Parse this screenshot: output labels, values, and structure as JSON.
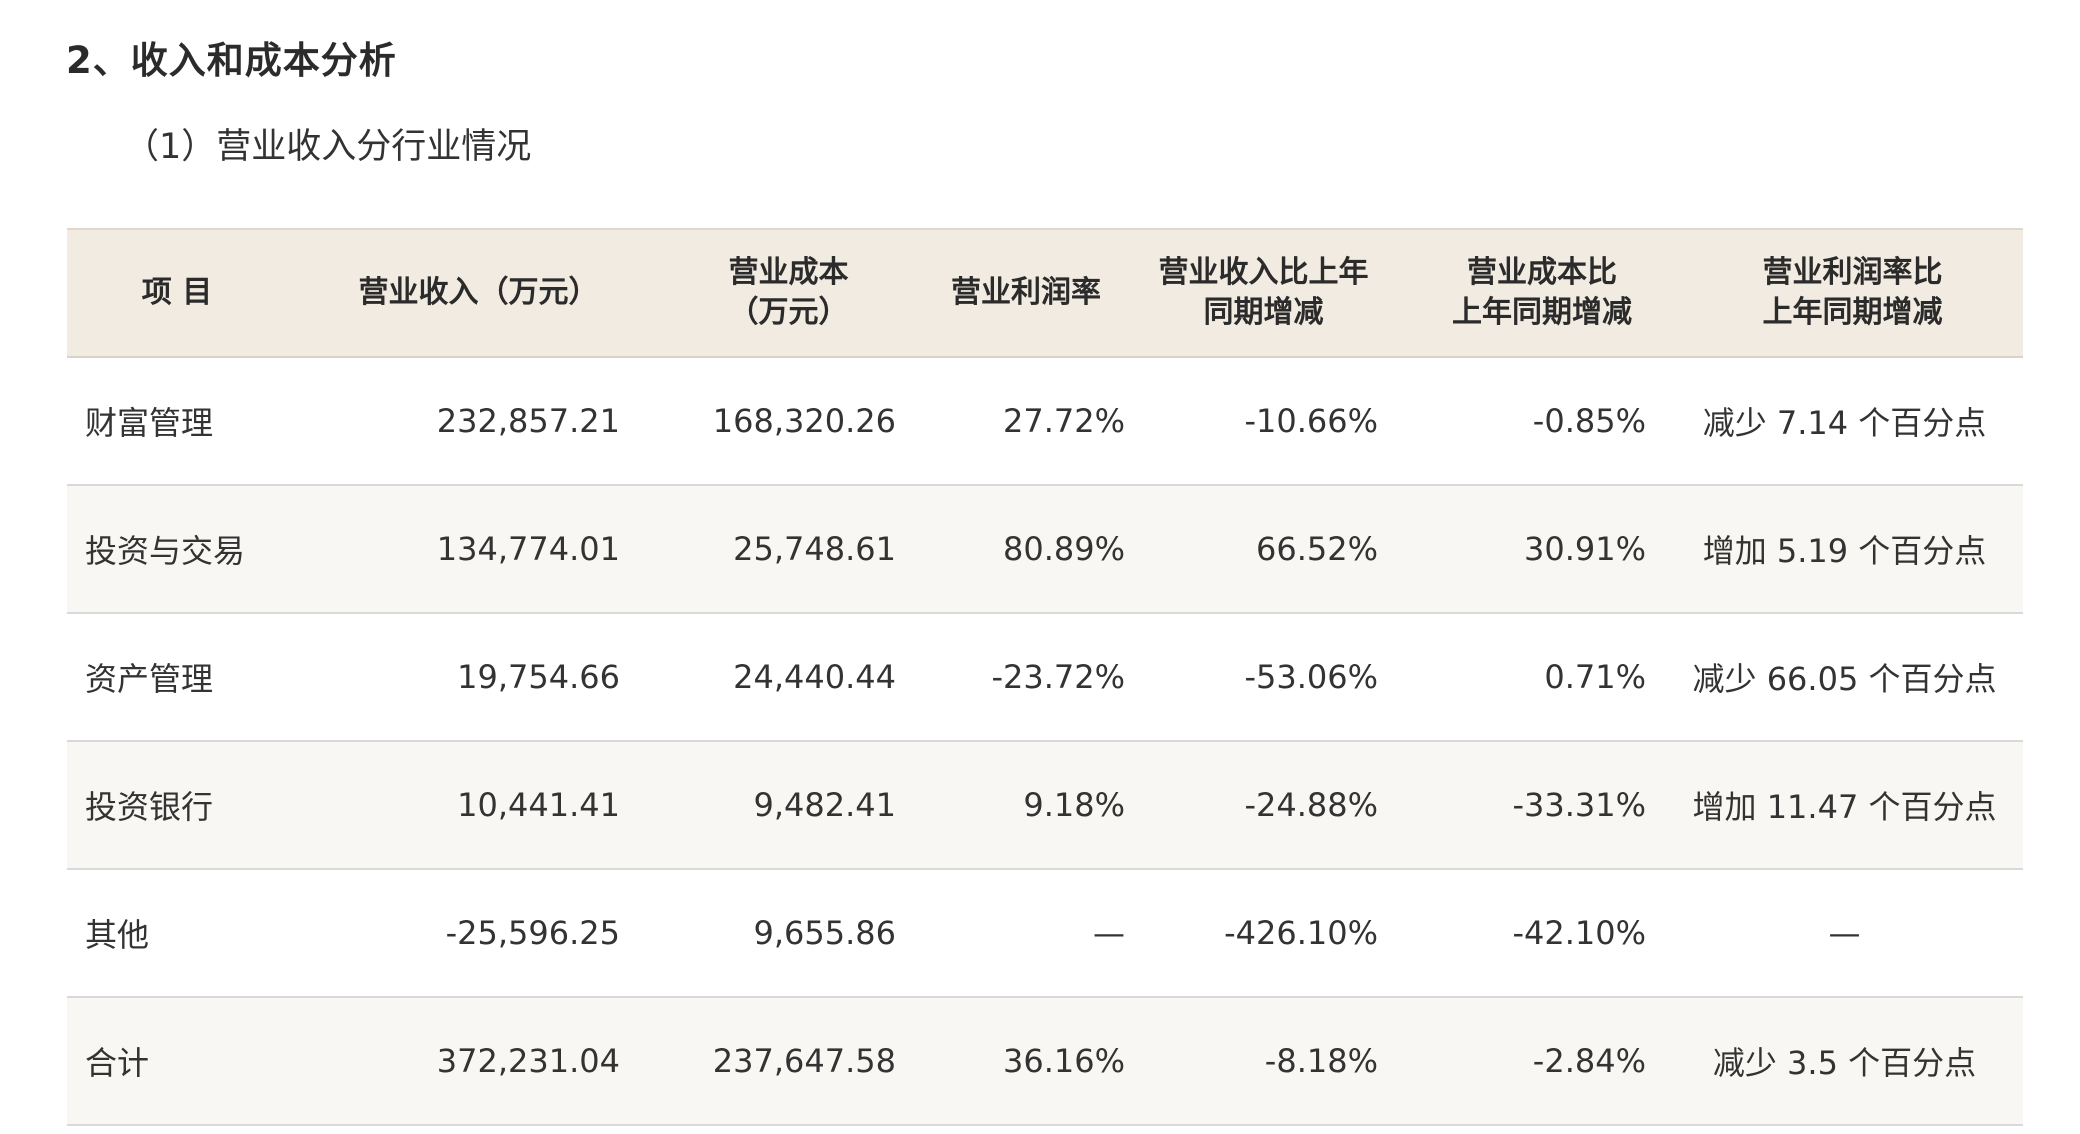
{
  "section_title": "2、收入和成本分析",
  "sub_title": "（1）营业收入分行业情况",
  "table": {
    "headers": [
      [
        "项  目"
      ],
      [
        "营业收入（万元）"
      ],
      [
        "营业成本",
        "（万元）"
      ],
      [
        "营业利润率"
      ],
      [
        "营业收入比上年",
        "同期增减"
      ],
      [
        "营业成本比",
        "上年同期增减"
      ],
      [
        "营业利润率比",
        "上年同期增减"
      ]
    ],
    "rows": [
      [
        "财富管理",
        "232,857.21",
        "168,320.26",
        "27.72%",
        "-10.66%",
        "-0.85%",
        "减少 7.14 个百分点"
      ],
      [
        "投资与交易",
        "134,774.01",
        "25,748.61",
        "80.89%",
        "66.52%",
        "30.91%",
        "增加 5.19 个百分点"
      ],
      [
        "资产管理",
        "19,754.66",
        "24,440.44",
        "-23.72%",
        "-53.06%",
        "0.71%",
        "减少 66.05 个百分点"
      ],
      [
        "投资银行",
        "10,441.41",
        "9,482.41",
        "9.18%",
        "-24.88%",
        "-33.31%",
        "增加 11.47 个百分点"
      ],
      [
        "其他",
        "-25,596.25",
        "9,655.86",
        "—",
        "-426.10%",
        "-42.10%",
        "—"
      ],
      [
        "合计",
        "372,231.04",
        "237,647.58",
        "36.16%",
        "-8.18%",
        "-2.84%",
        "减少 3.5 个百分点"
      ]
    ]
  }
}
